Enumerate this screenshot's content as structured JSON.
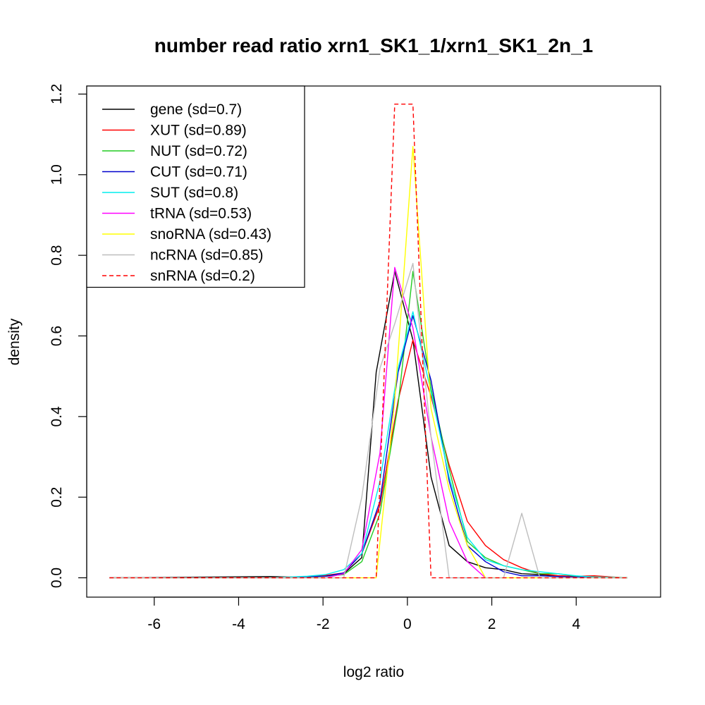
{
  "chart_data": {
    "type": "line",
    "title": "number read ratio xrn1_SK1_1/xrn1_SK1_2n_1",
    "xlabel": "log2 ratio",
    "ylabel": "density",
    "xlim": [
      -7.6,
      6.0
    ],
    "ylim": [
      -0.048,
      1.22
    ],
    "x_ticks": [
      "-6",
      "-4",
      "-2",
      "0",
      "2",
      "4"
    ],
    "x_tick_values": [
      -6,
      -4,
      -2,
      0,
      2,
      4
    ],
    "y_ticks": [
      "0.0",
      "0.2",
      "0.4",
      "0.6",
      "0.8",
      "1.0",
      "1.2"
    ],
    "y_tick_values": [
      0,
      0.2,
      0.4,
      0.6,
      0.8,
      1.0,
      1.2
    ],
    "grid": false,
    "legend_position": "top-left",
    "series": [
      {
        "name": "gene (sd=0.7)",
        "color": "#000000",
        "dash": "solid",
        "x": [
          -7.06,
          -3.23,
          -2.8,
          -2.37,
          -1.94,
          -1.51,
          -1.08,
          -0.74,
          -0.3,
          0.13,
          0.56,
          0.99,
          1.42,
          1.85,
          2.28,
          2.71,
          3.14,
          3.57,
          4.0,
          4.43,
          4.86,
          5.21
        ],
        "y": [
          0.0,
          0.003,
          0.002,
          0.003,
          0.005,
          0.01,
          0.05,
          0.51,
          0.76,
          0.59,
          0.25,
          0.08,
          0.04,
          0.025,
          0.02,
          0.01,
          0.008,
          0.005,
          0.003,
          0.002,
          0.001,
          0.0
        ]
      },
      {
        "name": "XUT (sd=0.89)",
        "color": "#ff0000",
        "dash": "solid",
        "x": [
          -7.06,
          -3.23,
          -2.8,
          -2.37,
          -1.94,
          -1.51,
          -1.08,
          -0.65,
          -0.22,
          0.13,
          0.56,
          0.99,
          1.42,
          1.85,
          2.28,
          2.71,
          3.14,
          3.57,
          4.0,
          4.43,
          4.86,
          5.21
        ],
        "y": [
          0.0,
          0.0,
          0.002,
          0.003,
          0.006,
          0.012,
          0.06,
          0.18,
          0.44,
          0.59,
          0.45,
          0.28,
          0.14,
          0.08,
          0.045,
          0.025,
          0.01,
          0.005,
          0.004,
          0.005,
          0.002,
          0.0
        ]
      },
      {
        "name": "NUT (sd=0.72)",
        "color": "#22cc22",
        "dash": "solid",
        "x": [
          -7.06,
          -3.23,
          -2.8,
          -2.37,
          -1.94,
          -1.51,
          -1.08,
          -0.65,
          -0.22,
          0.13,
          0.56,
          0.99,
          1.42,
          1.85,
          2.28,
          2.71,
          3.14,
          3.57,
          4.0,
          4.43,
          4.86,
          5.21
        ],
        "y": [
          0.0,
          0.0,
          0.0,
          0.002,
          0.004,
          0.008,
          0.04,
          0.16,
          0.43,
          0.76,
          0.47,
          0.27,
          0.09,
          0.05,
          0.03,
          0.02,
          0.01,
          0.01,
          0.004,
          0.002,
          0.001,
          0.0
        ]
      },
      {
        "name": "CUT (sd=0.71)",
        "color": "#0000cc",
        "dash": "solid",
        "x": [
          -7.06,
          -3.23,
          -2.8,
          -2.37,
          -1.94,
          -1.51,
          -1.08,
          -0.65,
          -0.22,
          0.13,
          0.56,
          0.99,
          1.42,
          1.85,
          2.28,
          2.71,
          3.14,
          3.57,
          4.0,
          4.43,
          4.86,
          5.21
        ],
        "y": [
          0.0,
          0.0,
          0.0,
          0.003,
          0.004,
          0.012,
          0.06,
          0.19,
          0.51,
          0.65,
          0.49,
          0.24,
          0.08,
          0.04,
          0.015,
          0.005,
          0.005,
          0.003,
          0.002,
          0.001,
          0.0,
          0.0
        ]
      },
      {
        "name": "SUT (sd=0.8)",
        "color": "#00eeee",
        "dash": "solid",
        "x": [
          -7.06,
          -3.23,
          -2.8,
          -2.37,
          -1.94,
          -1.51,
          -1.08,
          -0.65,
          -0.22,
          0.13,
          0.56,
          0.99,
          1.42,
          1.85,
          2.28,
          2.71,
          3.14,
          3.57,
          4.0,
          4.43,
          4.86,
          5.21
        ],
        "y": [
          0.0,
          0.0,
          0.002,
          0.004,
          0.008,
          0.02,
          0.06,
          0.24,
          0.52,
          0.66,
          0.46,
          0.25,
          0.1,
          0.045,
          0.03,
          0.02,
          0.015,
          0.01,
          0.005,
          0.002,
          0.001,
          0.0
        ]
      },
      {
        "name": "tRNA (sd=0.53)",
        "color": "#ff00ff",
        "dash": "solid",
        "x": [
          -7.06,
          -2.37,
          -1.94,
          -1.51,
          -1.08,
          -0.65,
          -0.3,
          0.13,
          0.56,
          0.99,
          1.42,
          1.85
        ],
        "y": [
          0.0,
          0.0,
          0.0,
          0.01,
          0.07,
          0.31,
          0.77,
          0.62,
          0.35,
          0.14,
          0.04,
          0.0
        ]
      },
      {
        "name": "snoRNA (sd=0.43)",
        "color": "#ffff00",
        "dash": "solid",
        "x": [
          -7.06,
          -0.74,
          -0.3,
          0.13,
          0.56,
          0.99,
          1.42,
          1.85,
          5.21
        ],
        "y": [
          0.0,
          0.0,
          0.44,
          1.07,
          0.42,
          0.22,
          0.08,
          0.0,
          0.0
        ]
      },
      {
        "name": "ncRNA (sd=0.85)",
        "color": "#bebebe",
        "dash": "solid",
        "x": [
          -7.06,
          -1.51,
          -1.08,
          -0.65,
          -0.3,
          0.13,
          0.56,
          0.99,
          2.28,
          2.71,
          3.14,
          5.21
        ],
        "y": [
          0.0,
          0.0,
          0.2,
          0.52,
          0.63,
          0.78,
          0.35,
          0.0,
          0.0,
          0.16,
          0.0,
          0.0
        ]
      },
      {
        "name": "snRNA (sd=0.2)",
        "color": "#ff0000",
        "dash": "dashed",
        "x": [
          -7.06,
          -0.74,
          -0.3,
          0.13,
          0.56,
          5.21
        ],
        "y": [
          0.0,
          0.0,
          1.175,
          1.175,
          0.0,
          0.0
        ]
      }
    ]
  }
}
